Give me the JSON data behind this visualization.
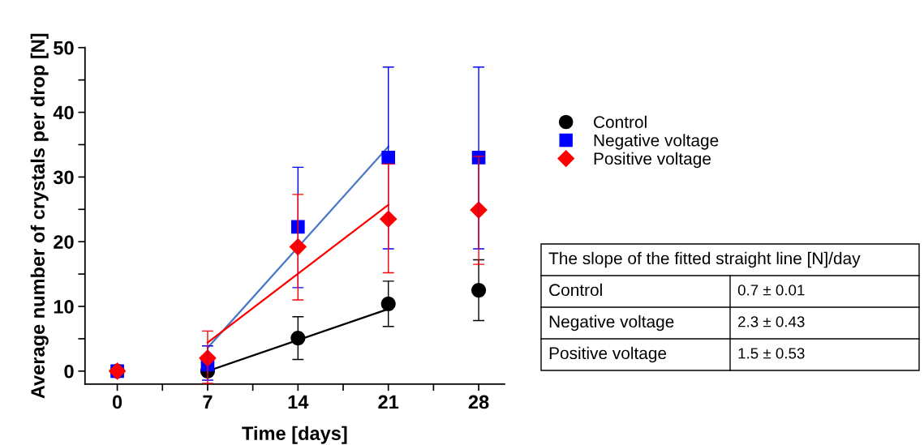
{
  "chart_data": {
    "type": "scatter",
    "xlabel": "Time [days]",
    "ylabel": "Average number of crystals per drop [N]",
    "xlim": [
      -2.5,
      30
    ],
    "ylim": [
      -2,
      50
    ],
    "xticks": [
      0,
      {
        "value": 3.5,
        "label": null
      },
      7,
      {
        "value": 10.5,
        "label": null
      },
      14,
      {
        "value": 17.5,
        "label": null
      },
      21,
      {
        "value": 24.5,
        "label": null
      },
      28
    ],
    "yticks": [
      0,
      {
        "value": 5,
        "label": null
      },
      10,
      {
        "value": 15,
        "label": null
      },
      20,
      {
        "value": 25,
        "label": null
      },
      30,
      {
        "value": 35,
        "label": null
      },
      40,
      {
        "value": 45,
        "label": null
      },
      50
    ],
    "grid": false,
    "legend": "right",
    "series": [
      {
        "name": "Control",
        "color": "#000000",
        "marker": "circle",
        "x": [
          0,
          7,
          14,
          21,
          28
        ],
        "values": [
          0,
          0,
          5.1,
          10.4,
          12.5
        ],
        "errors": [
          null,
          null,
          [
            1.8,
            8.4
          ],
          [
            6.9,
            13.9
          ],
          [
            7.8,
            17.2
          ]
        ]
      },
      {
        "name": "Negative voltage",
        "color": "#0000ff",
        "marker": "square",
        "x": [
          0,
          7,
          14,
          21,
          28
        ],
        "values": [
          0,
          1.0,
          22.3,
          33,
          33
        ],
        "errors": [
          null,
          [
            -1.4,
            3.9
          ],
          [
            12.9,
            31.5
          ],
          [
            18.9,
            47
          ],
          [
            18.9,
            47
          ]
        ]
      },
      {
        "name": "Positive voltage",
        "color": "#ff0000",
        "marker": "diamond",
        "x": [
          0,
          7,
          14,
          21,
          28
        ],
        "values": [
          0,
          2.0,
          19.2,
          23.5,
          24.9
        ],
        "errors": [
          null,
          [
            -1.9,
            6.2
          ],
          [
            11.0,
            27.3
          ],
          [
            15.2,
            32.0
          ],
          [
            16.5,
            33.2
          ]
        ]
      },
      {
        "type": "line",
        "color": "#000000",
        "x": [
          7,
          21
        ],
        "values": [
          0,
          9.6
        ]
      },
      {
        "type": "line",
        "color": "#4a78c8",
        "x": [
          7,
          21
        ],
        "values": [
          3.6,
          34.7
        ]
      },
      {
        "type": "line",
        "color": "#ff0000",
        "x": [
          7,
          21
        ],
        "values": [
          4.4,
          25.7
        ]
      }
    ],
    "annotations": [
      "The slope of the fitted straight line [N]/day",
      "Control",
      "0.7 ± 0.01",
      "Negative voltage",
      "2.3 ± 0.43",
      "Positive voltage",
      "1.5 ± 0.53"
    ]
  }
}
